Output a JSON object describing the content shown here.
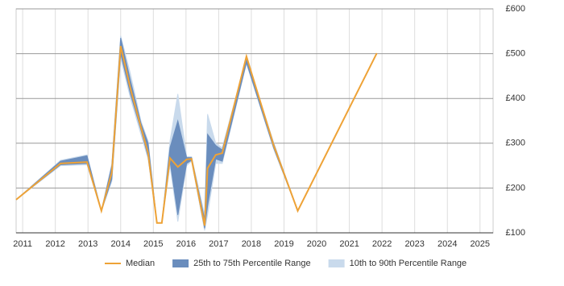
{
  "chart_data": {
    "type": "line",
    "x": [
      2010.8,
      2012.16,
      2012.97,
      2013.41,
      2013.73,
      2014.0,
      2014.3,
      2014.62,
      2014.84,
      2015.11,
      2015.26,
      2015.51,
      2015.75,
      2016.02,
      2016.17,
      2016.57,
      2016.66,
      2016.91,
      2017.11,
      2017.85,
      2018.68,
      2019.42,
      2021.84
    ],
    "xlim": [
      2010.8,
      2025.4
    ],
    "xticks": [
      2011,
      2012,
      2013,
      2014,
      2015,
      2016,
      2017,
      2018,
      2019,
      2020,
      2021,
      2022,
      2023,
      2024,
      2025
    ],
    "ylim": [
      100,
      600
    ],
    "yticks": [
      {
        "value": 100,
        "label": "£100"
      },
      {
        "value": 200,
        "label": "£200"
      },
      {
        "value": 300,
        "label": "£300"
      },
      {
        "value": 400,
        "label": "£400"
      },
      {
        "value": 500,
        "label": "£500"
      },
      {
        "value": 600,
        "label": "£600"
      }
    ],
    "grid": true,
    "bands": [
      {
        "name": "10th to 90th Percentile Range",
        "color": "#c9daec",
        "lower": [
          174,
          250,
          252,
          149,
          215,
          490,
          400,
          320,
          265,
          122,
          122,
          250,
          125,
          250,
          260,
          105,
          140,
          255,
          255,
          478,
          288,
          149,
          501
        ],
        "upper": [
          174,
          262,
          274,
          149,
          255,
          540,
          455,
          350,
          305,
          122,
          122,
          305,
          410,
          270,
          270,
          140,
          365,
          300,
          290,
          492,
          302,
          149,
          501
        ]
      },
      {
        "name": "25th to 75th Percentile Range",
        "color": "#6a8dbd",
        "lower": [
          174,
          252,
          255,
          149,
          220,
          500,
          410,
          330,
          270,
          122,
          122,
          260,
          140,
          255,
          262,
          110,
          160,
          265,
          260,
          480,
          290,
          149,
          501
        ],
        "upper": [
          174,
          260,
          272,
          149,
          250,
          535,
          440,
          345,
          300,
          122,
          122,
          290,
          350,
          268,
          268,
          130,
          320,
          295,
          285,
          490,
          300,
          149,
          501
        ]
      }
    ],
    "series": [
      {
        "name": "Median",
        "color": "#eea236",
        "values": [
          174,
          255,
          258,
          149,
          235,
          517,
          422,
          336,
          278,
          122,
          122,
          267,
          247,
          264,
          265,
          116,
          244,
          274,
          278,
          494,
          296,
          149,
          501
        ]
      }
    ]
  }
}
